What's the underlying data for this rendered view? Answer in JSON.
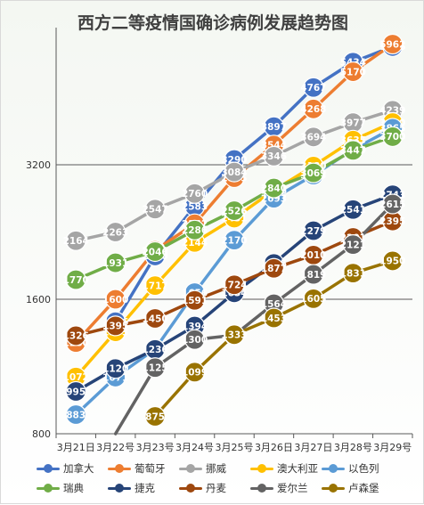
{
  "chart_data": {
    "type": "line",
    "title": "西方二等疫情国确诊病例发展趋势图",
    "categories": [
      "3月21日",
      "3月22号",
      "3月23号",
      "3月24号",
      "3月25号",
      "3月26日",
      "3月27日",
      "3月28号",
      "3月29号"
    ],
    "y_tick_labels": [
      "800",
      "1600",
      "3200"
    ],
    "ylim": [
      800,
      6200
    ],
    "y_scale": "log",
    "grid": "horizontal lines at 1600 and 3200",
    "legend": "bottom",
    "series": [
      {
        "name": "加拿大",
        "color": "#4472c4",
        "values": [
          null,
          1426,
          2000,
          2583,
          3290,
          3897,
          4767,
          5434,
          5886
        ]
      },
      {
        "name": "葡萄牙",
        "color": "#ed7d31",
        "values": [
          1280,
          1600,
          2060,
          2362,
          2995,
          3544,
          4268,
          5170,
          5962
        ]
      },
      {
        "name": "挪威",
        "color": "#a5a5a5",
        "values": [
          2164,
          2263,
          2547,
          2760,
          3084,
          3346,
          3694,
          3977,
          4239
        ]
      },
      {
        "name": "澳大利亚",
        "color": "#ffc000",
        "values": [
          1072,
          1353,
          1717,
          2144,
          2431,
          2806,
          3180,
          3635,
          3980
        ]
      },
      {
        "name": "以色列",
        "color": "#5b9bd5",
        "values": [
          883,
          1071,
          1238,
          1656,
          2170,
          2693,
          3035,
          3460,
          3865
        ]
      },
      {
        "name": "瑞典",
        "color": "#70ad47",
        "values": [
          1770,
          1931,
          2046,
          2286,
          2526,
          2840,
          3069,
          3447,
          3700
        ]
      },
      {
        "name": "捷克",
        "color": "#264478",
        "values": [
          995,
          1120,
          1236,
          1394,
          1654,
          1925,
          2279,
          2541,
          2743
        ]
      },
      {
        "name": "丹麦",
        "color": "#9e480e",
        "values": [
          1326,
          1395,
          1450,
          1591,
          1724,
          1877,
          2010,
          2201,
          2395
        ]
      },
      {
        "name": "爱尔兰",
        "color": "#636363",
        "values": [
          null,
          785,
          1125,
          1300,
          1329,
          1564,
          1819,
          2121,
          2615
        ]
      },
      {
        "name": "卢森堡",
        "color": "#997300",
        "values": [
          null,
          null,
          875,
          1099,
          1333,
          1453,
          1605,
          1831,
          1950
        ]
      }
    ]
  }
}
